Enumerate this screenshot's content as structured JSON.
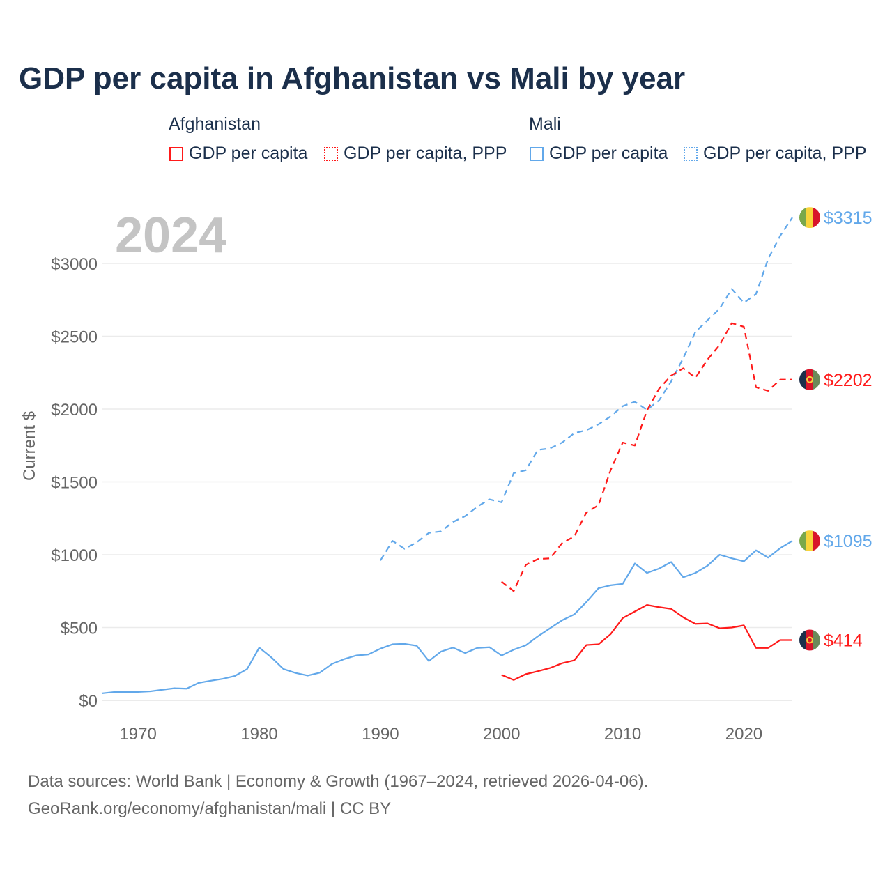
{
  "title": "GDP per capita in Afghanistan vs Mali by year",
  "legend": {
    "groups": [
      {
        "name": "Afghanistan",
        "items": [
          "GDP per capita",
          "GDP per capita, PPP"
        ]
      },
      {
        "name": "Mali",
        "items": [
          "GDP per capita",
          "GDP per capita, PPP"
        ]
      }
    ]
  },
  "footer": {
    "line1": "Data sources: World Bank | Economy & Growth (1967–2024, retrieved 2026-04-06).",
    "line2": "GeoRank.org/economy/afghanistan/mali | CC BY"
  },
  "colors": {
    "afghanistan": "#ff1a1a",
    "mali": "#62a8ea",
    "grid": "#ebebeb",
    "tick": "#666666",
    "year": "#c4c4c4"
  },
  "chart_data": {
    "type": "line",
    "title": "GDP per capita in Afghanistan vs Mali by year",
    "year_label": "2024",
    "ylabel": "Current $",
    "xlabel": "",
    "xlim": [
      1967,
      2024
    ],
    "ylim": [
      0,
      3000
    ],
    "x_ticks": [
      1970,
      1980,
      1990,
      2000,
      2010,
      2020
    ],
    "y_ticks": [
      0,
      500,
      1000,
      1500,
      2000,
      2500,
      3000
    ],
    "y_tick_labels": [
      "$0",
      "$500",
      "$1000",
      "$1500",
      "$2000",
      "$2500",
      "$3000"
    ],
    "grid": true,
    "series": [
      {
        "name": "Mali GDP per capita, PPP",
        "country": "mali",
        "style": "dashed",
        "start": 1990,
        "end_label": "$3315",
        "values": [
          960,
          1095,
          1040,
          1085,
          1150,
          1160,
          1225,
          1265,
          1330,
          1380,
          1360,
          1560,
          1580,
          1720,
          1730,
          1770,
          1835,
          1855,
          1895,
          1950,
          2020,
          2050,
          1995,
          2060,
          2190,
          2350,
          2530,
          2610,
          2690,
          2825,
          2730,
          2790,
          3030,
          3190,
          3315
        ]
      },
      {
        "name": "Afghanistan GDP per capita, PPP",
        "country": "afghanistan",
        "style": "dashed",
        "start": 2000,
        "end_label": "$2202",
        "values": [
          815,
          750,
          930,
          970,
          975,
          1080,
          1125,
          1290,
          1340,
          1580,
          1770,
          1750,
          1990,
          2140,
          2230,
          2280,
          2215,
          2340,
          2440,
          2590,
          2565,
          2150,
          2125,
          2202,
          2202
        ]
      },
      {
        "name": "Mali GDP per capita",
        "country": "mali",
        "style": "solid",
        "start": 1967,
        "end_label": "$1095",
        "values": [
          48,
          57,
          57,
          58,
          62,
          73,
          83,
          80,
          120,
          135,
          148,
          168,
          215,
          362,
          295,
          215,
          188,
          170,
          190,
          250,
          283,
          308,
          315,
          355,
          385,
          388,
          375,
          270,
          335,
          362,
          325,
          360,
          365,
          308,
          348,
          378,
          440,
          495,
          550,
          590,
          675,
          770,
          790,
          800,
          940,
          875,
          905,
          950,
          845,
          875,
          925,
          1000,
          975,
          955,
          1030,
          980,
          1045,
          1095
        ]
      },
      {
        "name": "Afghanistan GDP per capita",
        "country": "afghanistan",
        "style": "solid",
        "start": 2000,
        "end_label": "$414",
        "values": [
          175,
          140,
          180,
          200,
          222,
          255,
          275,
          380,
          385,
          455,
          565,
          610,
          655,
          640,
          628,
          570,
          525,
          528,
          495,
          500,
          515,
          360,
          360,
          414,
          414
        ]
      }
    ]
  }
}
